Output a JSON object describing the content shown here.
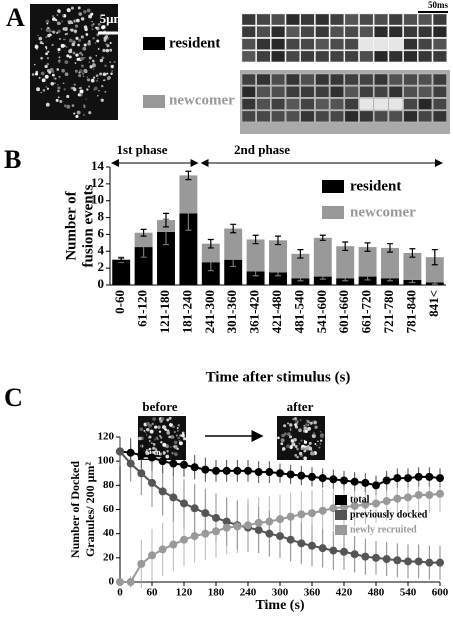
{
  "panel_labels": [
    "A",
    "B",
    "C"
  ],
  "panel_a": {
    "scale_bar": "5μm",
    "film_scale": "50ms",
    "legend": [
      "resident",
      "newcomer"
    ]
  },
  "chart_data": [
    {
      "type": "bar",
      "stacked": true,
      "ylabel": [
        "Number of",
        "fusion events"
      ],
      "xlabel": "Time after stimulus (s)",
      "annotations": [
        "1st phase",
        "2nd phase"
      ],
      "categories": [
        "0-60",
        "61-120",
        "121-180",
        "181-240",
        "241-300",
        "301-360",
        "361-420",
        "421-480",
        "481-540",
        "541-600",
        "601-660",
        "661-720",
        "721-780",
        "781-840",
        "841<"
      ],
      "series": [
        {
          "name": "resident",
          "color": "#000000",
          "values": [
            3.0,
            4.5,
            6.3,
            8.5,
            2.7,
            3.0,
            1.6,
            1.5,
            0.8,
            1.0,
            0.8,
            1.0,
            0.8,
            0.6,
            0.3
          ],
          "errors": [
            0.3,
            1.2,
            1.5,
            2.0,
            1.0,
            0.8,
            0.5,
            0.4,
            0.3,
            0.3,
            0.3,
            0.4,
            0.3,
            0.3,
            0.2
          ]
        },
        {
          "name": "newcomer",
          "color": "#999999",
          "values": [
            0,
            1.7,
            1.4,
            4.5,
            2.2,
            3.7,
            3.8,
            3.8,
            2.9,
            4.6,
            3.8,
            3.5,
            3.6,
            3.2,
            3.0
          ],
          "errors": [
            0.2,
            0.4,
            0.8,
            0.5,
            0.5,
            0.5,
            0.5,
            0.5,
            0.5,
            0.3,
            0.5,
            0.5,
            0.5,
            0.5,
            0.9
          ]
        }
      ],
      "ylim": [
        0,
        14
      ],
      "yticks": [
        0,
        2,
        4,
        6,
        8,
        10,
        12,
        14
      ]
    },
    {
      "type": "line",
      "images": [
        "before",
        "after"
      ],
      "scale_bar": "5μm",
      "ylabel": [
        "Number of Docked",
        "Granules/ 200 μm²"
      ],
      "xlabel": "Time (s)",
      "x": [
        0,
        20,
        40,
        60,
        80,
        100,
        120,
        140,
        160,
        180,
        200,
        220,
        240,
        260,
        280,
        300,
        320,
        340,
        360,
        380,
        400,
        420,
        440,
        460,
        480,
        500,
        520,
        540,
        560,
        580,
        600
      ],
      "series": [
        {
          "name": "total",
          "color": "#000000",
          "values": [
            108,
            107,
            105,
            103,
            100,
            98,
            97,
            95,
            93,
            92,
            92,
            92,
            92,
            91,
            91,
            90,
            89,
            88,
            87,
            86,
            85,
            84,
            83,
            82,
            80,
            84,
            86,
            86,
            87,
            87,
            86
          ],
          "errors": [
            12,
            12,
            11,
            11,
            10,
            10,
            10,
            10,
            10,
            9,
            9,
            9,
            9,
            9,
            9,
            8,
            8,
            8,
            8,
            8,
            8,
            8,
            8,
            8,
            8,
            8,
            8,
            8,
            8,
            8,
            8
          ]
        },
        {
          "name": "previously docked",
          "color": "#555555",
          "values": [
            108,
            98,
            90,
            82,
            75,
            70,
            65,
            61,
            57,
            53,
            50,
            47,
            45,
            43,
            40,
            38,
            35,
            32,
            30,
            28,
            26,
            25,
            23,
            21,
            20,
            19,
            18,
            17,
            17,
            16,
            16
          ],
          "errors": [
            12,
            15,
            18,
            20,
            20,
            20,
            20,
            20,
            20,
            20,
            20,
            20,
            20,
            19,
            19,
            18,
            18,
            17,
            17,
            16,
            16,
            15,
            15,
            15,
            14,
            14,
            14,
            14,
            14,
            14,
            14
          ]
        },
        {
          "name": "newly recruited",
          "color": "#999999",
          "values": [
            0,
            0,
            15,
            22,
            27,
            31,
            35,
            38,
            40,
            42,
            45,
            46,
            47,
            49,
            50,
            52,
            54,
            56,
            57,
            59,
            61,
            62,
            63,
            64,
            65,
            67,
            69,
            70,
            72,
            72,
            73
          ],
          "errors": [
            0,
            5,
            20,
            22,
            22,
            22,
            22,
            22,
            22,
            22,
            22,
            22,
            22,
            21,
            21,
            20,
            20,
            19,
            19,
            18,
            18,
            17,
            17,
            16,
            16,
            16,
            15,
            15,
            15,
            15,
            15
          ]
        }
      ],
      "xlim": [
        0,
        600
      ],
      "xticks": [
        0,
        60,
        120,
        180,
        240,
        300,
        360,
        420,
        480,
        540,
        600
      ],
      "ylim": [
        0,
        120
      ],
      "yticks": [
        0,
        20,
        40,
        60,
        80,
        100,
        120
      ]
    }
  ]
}
